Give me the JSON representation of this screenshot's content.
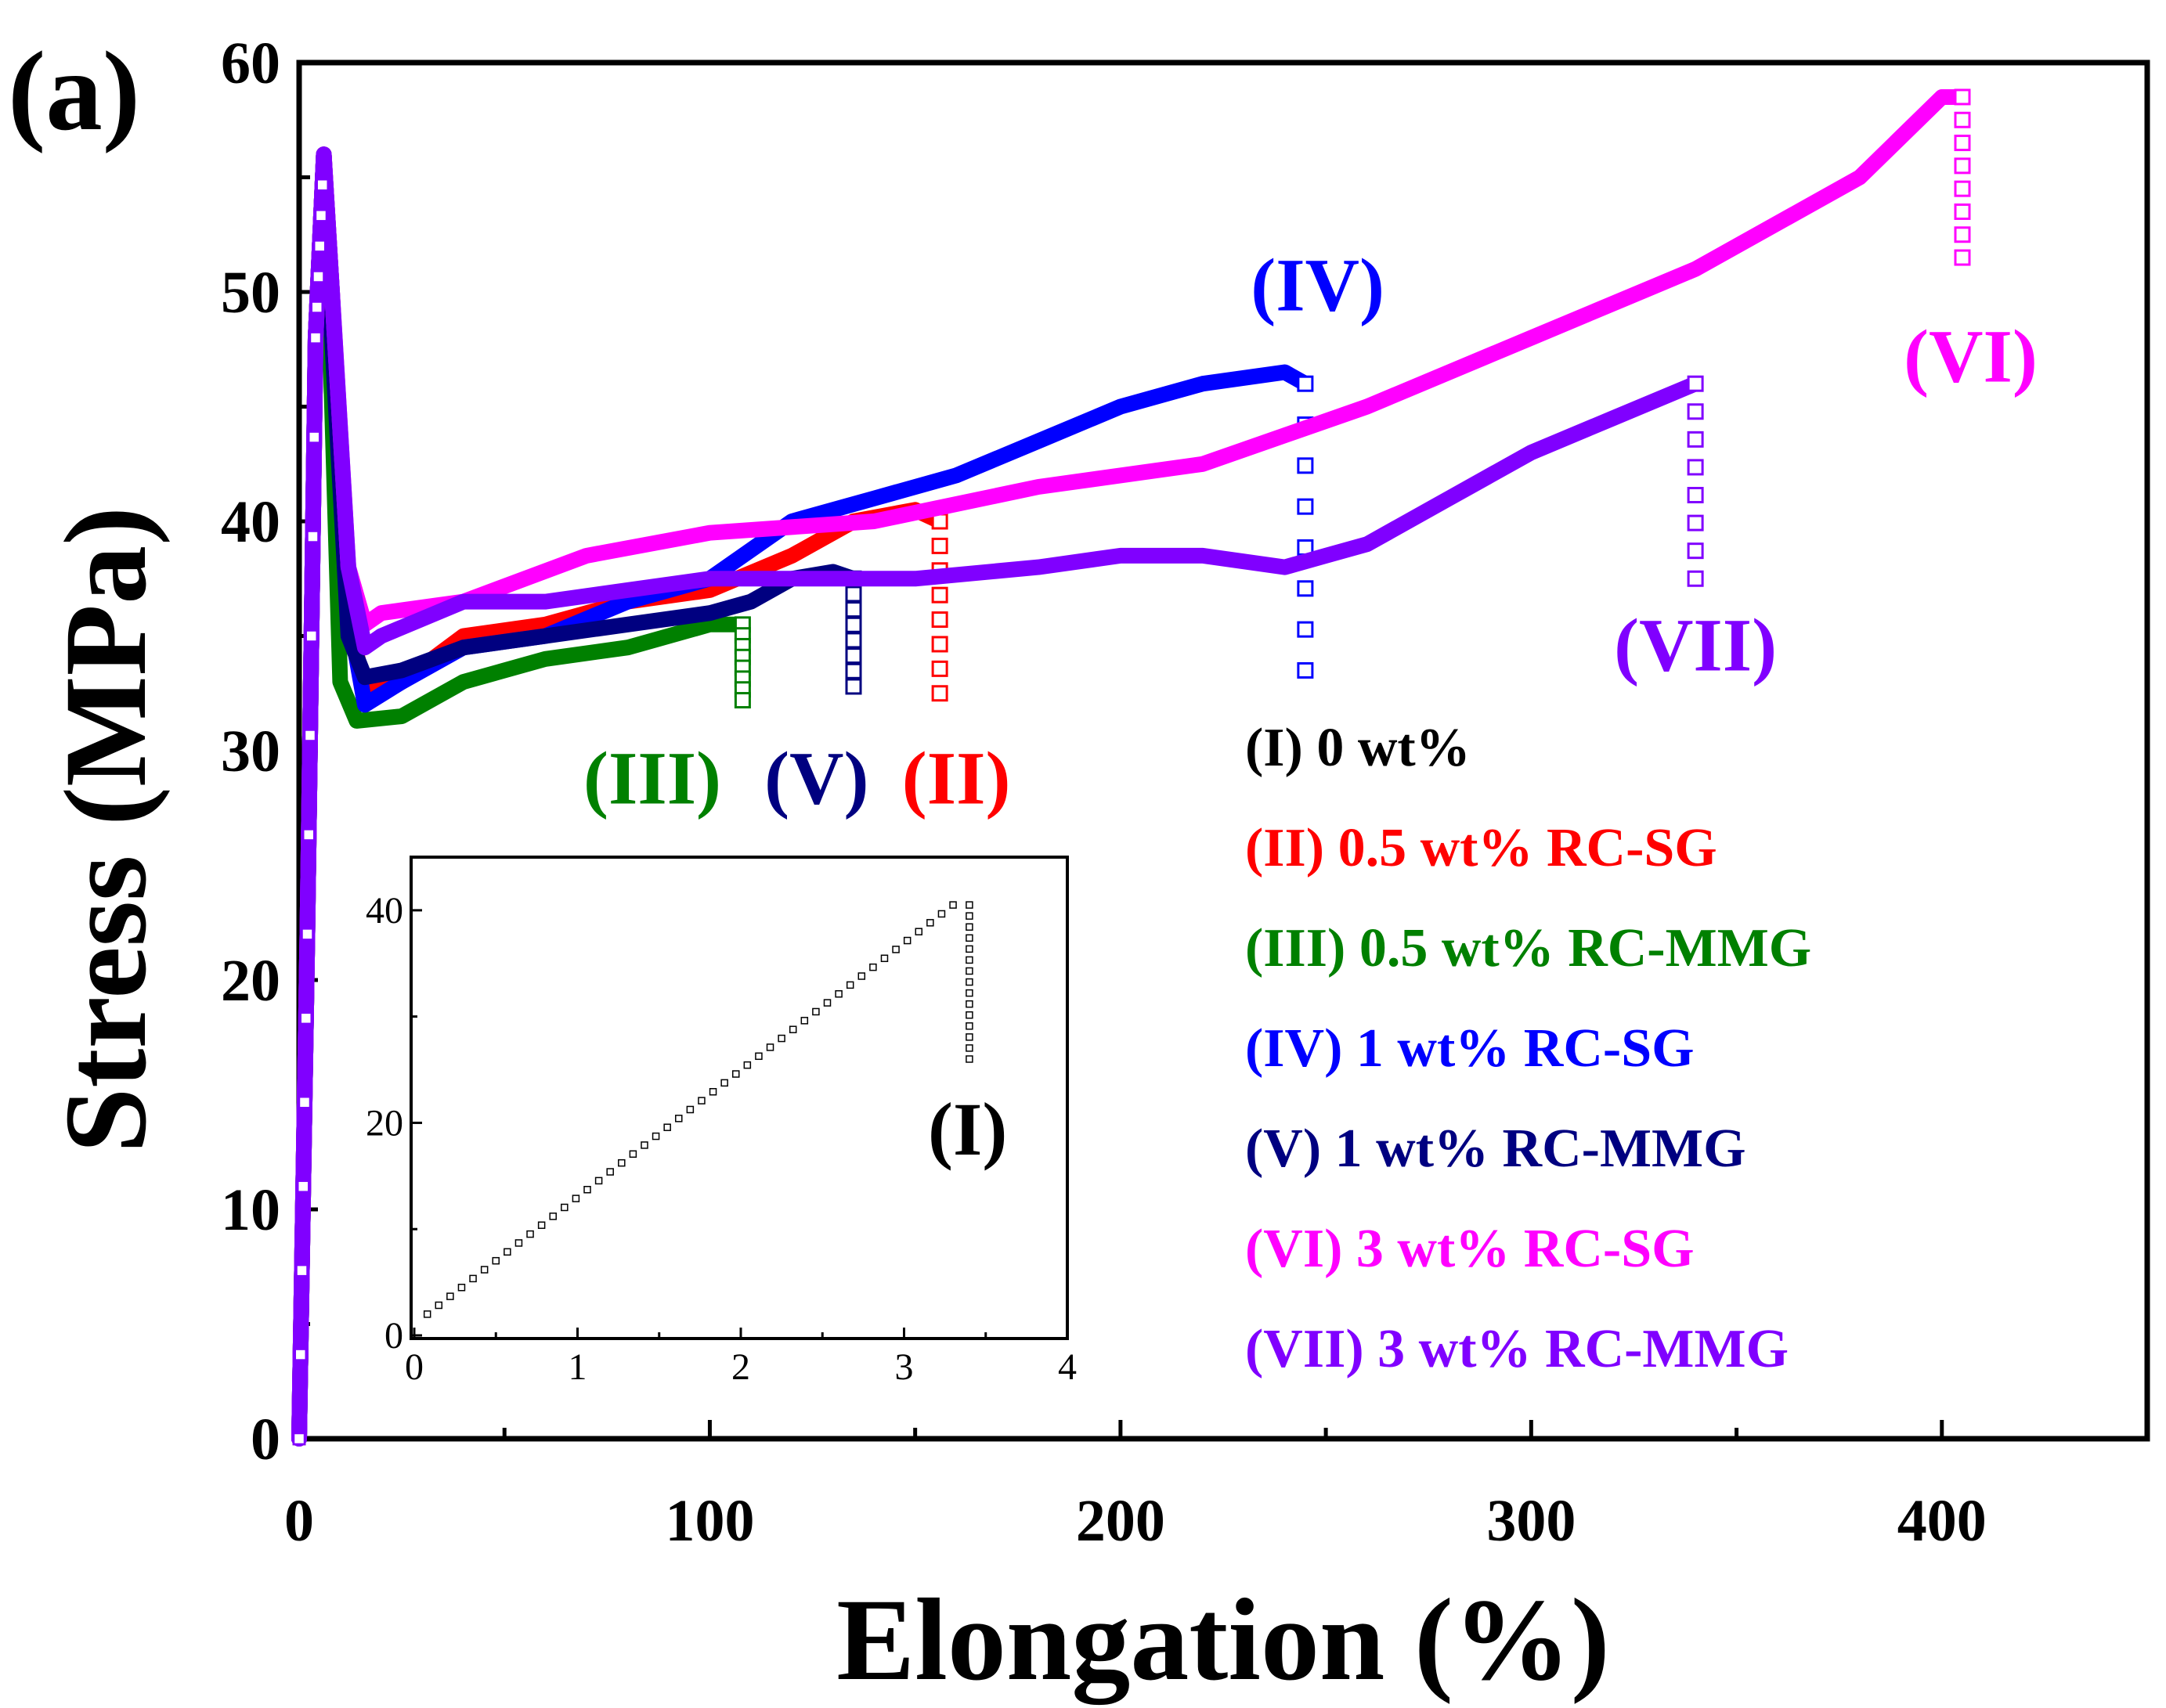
{
  "chart_data": {
    "type": "line",
    "panel_label": "(a)",
    "xlabel": "Elongation (%)",
    "ylabel": "Stress (MPa)",
    "xlim": [
      0,
      450
    ],
    "ylim": [
      0,
      60
    ],
    "xticks": [
      0,
      100,
      200,
      300,
      400
    ],
    "yticks": [
      0,
      10,
      20,
      30,
      40,
      50,
      60
    ],
    "legend": {
      "position": "bottom-right",
      "entries": [
        {
          "text": "(I) 0 wt%",
          "color": "#000000"
        },
        {
          "text": "(II) 0.5 wt% RC-SG",
          "color": "#ff0000"
        },
        {
          "text": "(III) 0.5 wt% RC-MMG",
          "color": "#008000"
        },
        {
          "text": "(IV) 1 wt% RC-SG",
          "color": "#0000ff"
        },
        {
          "text": "(V) 1 wt% RC-MMG",
          "color": "#000080"
        },
        {
          "text": "(VI) 3 wt% RC-SG",
          "color": "#ff00ff"
        },
        {
          "text": "(VII) 3 wt% RC-MMG",
          "color": "#8000ff"
        }
      ]
    },
    "series": [
      {
        "name": "(II)",
        "color": "#ff0000",
        "x": [
          0,
          2,
          4,
          6,
          8,
          12,
          16,
          25,
          40,
          60,
          80,
          100,
          120,
          135,
          150,
          156
        ],
        "y": [
          0,
          22,
          48,
          56,
          50,
          36,
          32.5,
          33,
          35,
          35.5,
          36.5,
          37,
          38.5,
          40,
          40.5,
          40
        ],
        "break_y": [
          40,
          32.5
        ]
      },
      {
        "name": "(III)",
        "color": "#008000",
        "x": [
          0,
          2,
          4,
          6,
          8,
          10,
          14,
          25,
          40,
          60,
          80,
          100,
          108
        ],
        "y": [
          0,
          22,
          48,
          56,
          45,
          33,
          31.3,
          31.5,
          33,
          34,
          34.5,
          35.5,
          35.5
        ],
        "break_y": [
          35.5,
          32.2
        ]
      },
      {
        "name": "(IV)",
        "color": "#0000ff",
        "x": [
          0,
          2,
          4,
          6,
          8,
          12,
          16,
          25,
          40,
          60,
          80,
          100,
          120,
          140,
          160,
          180,
          200,
          220,
          240,
          245
        ],
        "y": [
          0,
          22,
          48,
          56,
          50,
          36,
          32,
          33,
          34.5,
          35,
          36.5,
          37.5,
          40,
          41,
          42,
          43.5,
          45,
          46,
          46.5,
          46
        ],
        "break_y": [
          46,
          33.5
        ]
      },
      {
        "name": "(V)",
        "color": "#000080",
        "x": [
          0,
          2,
          4,
          6,
          8,
          12,
          16,
          25,
          40,
          60,
          80,
          100,
          110,
          120,
          130,
          135
        ],
        "y": [
          0,
          22,
          48,
          56,
          48,
          35,
          33.2,
          33.5,
          34.5,
          35,
          35.5,
          36,
          36.5,
          37.5,
          37.8,
          37.5
        ],
        "break_y": [
          37.5,
          32.8
        ]
      },
      {
        "name": "(VI)",
        "color": "#ff00ff",
        "x": [
          0,
          2,
          4,
          6,
          8,
          12,
          16,
          20,
          40,
          70,
          100,
          140,
          180,
          220,
          260,
          300,
          340,
          380,
          400,
          405
        ],
        "y": [
          0,
          22,
          48,
          56,
          50,
          38,
          35.5,
          36,
          36.5,
          38.5,
          39.5,
          40,
          41.5,
          42.5,
          45,
          48,
          51,
          55,
          58.5,
          58.5
        ],
        "break_y": [
          58.5,
          51.5
        ]
      },
      {
        "name": "(VII)",
        "color": "#8000ff",
        "x": [
          0,
          2,
          4,
          6,
          8,
          12,
          16,
          20,
          40,
          60,
          80,
          100,
          120,
          150,
          180,
          200,
          220,
          240,
          250,
          260,
          280,
          300,
          320,
          340
        ],
        "y": [
          0,
          22,
          48,
          56,
          50,
          38,
          34.5,
          35,
          36.5,
          36.5,
          37,
          37.5,
          37.5,
          37.5,
          38,
          38.5,
          38.5,
          38,
          38.5,
          39,
          41,
          43,
          44.5,
          46
        ],
        "break_y": [
          46,
          37.5
        ]
      }
    ],
    "curve_labels": [
      {
        "text": "(IV)",
        "color": "#0000ff",
        "x": 248,
        "y": 49.2
      },
      {
        "text": "(VI)",
        "color": "#ff00ff",
        "x": 407,
        "y": 46.1
      },
      {
        "text": "(VII)",
        "color": "#8000ff",
        "x": 340,
        "y": 33.5
      },
      {
        "text": "(III)",
        "color": "#008000",
        "x": 86,
        "y": 27.7
      },
      {
        "text": "(V)",
        "color": "#000080",
        "x": 126,
        "y": 27.7
      },
      {
        "text": "(II)",
        "color": "#ff0000",
        "x": 160,
        "y": 27.7
      }
    ],
    "inset": {
      "series_name": "(I)",
      "color": "#000000",
      "xlim": [
        0,
        4
      ],
      "ylim": [
        0,
        45
      ],
      "xticks": [
        0,
        1,
        2,
        3,
        4
      ],
      "yticks": [
        0,
        20,
        40
      ],
      "x_end": 3.3,
      "y_end": 40.5,
      "break_y": [
        40.5,
        26
      ],
      "label": "(I)"
    }
  }
}
